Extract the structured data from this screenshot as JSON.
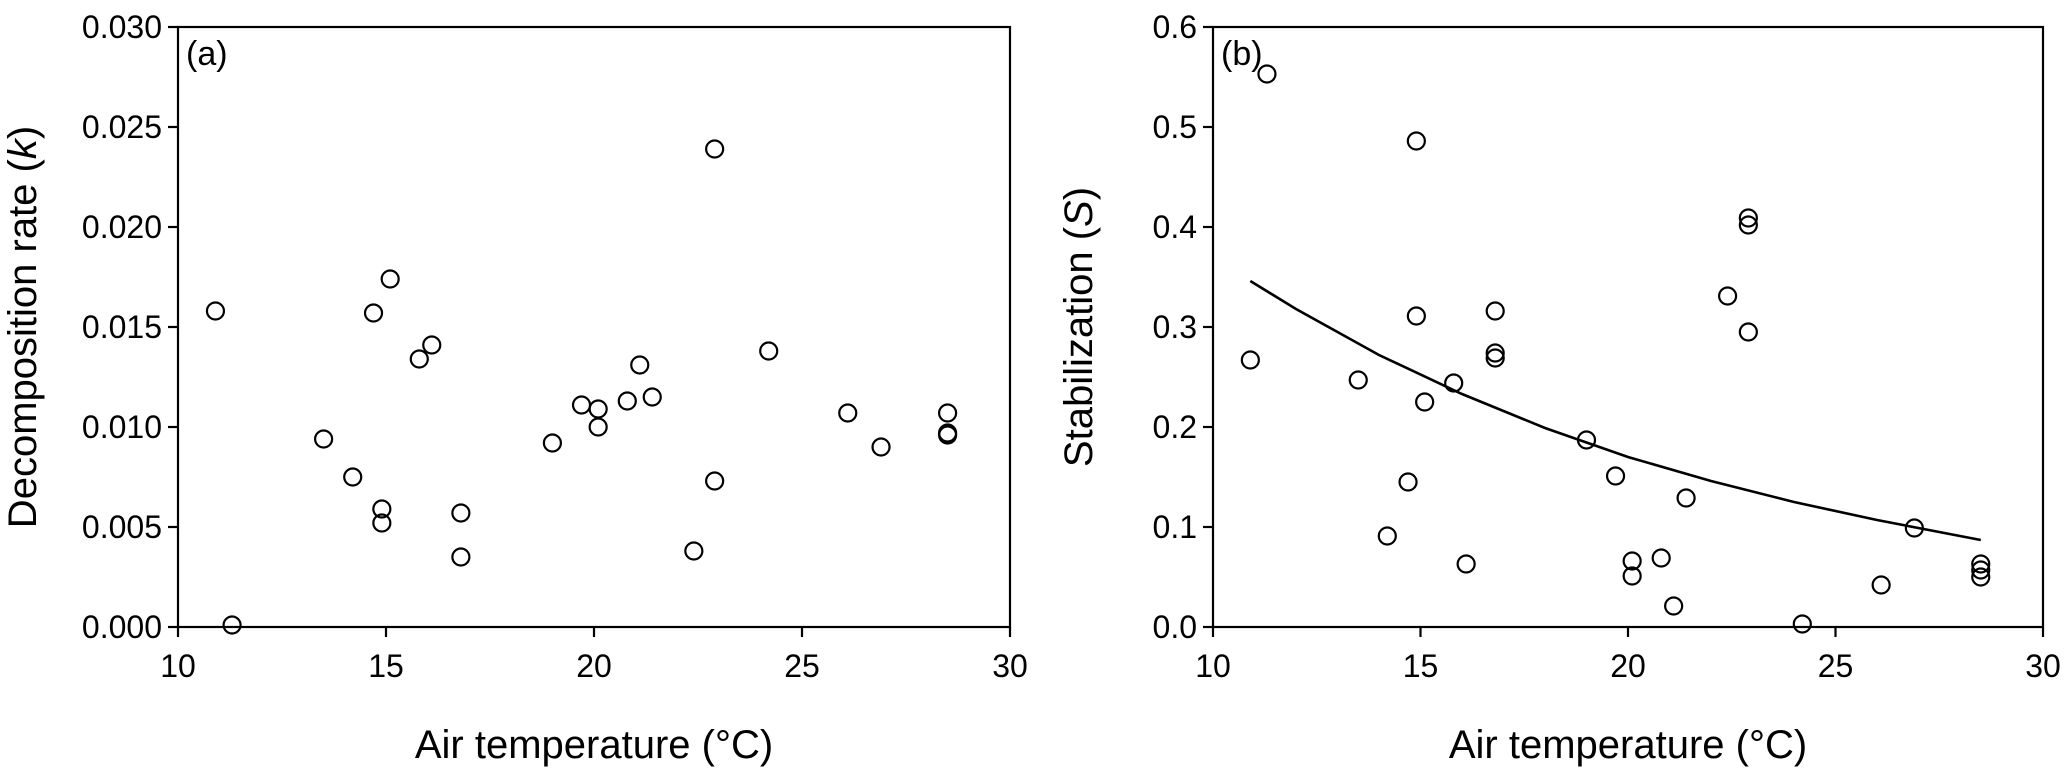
{
  "chart_data": [
    {
      "type": "scatter",
      "panel_label": "(a)",
      "xlabel": "Air temperature (°C)",
      "ylabel_prefix": "Decomposition rate (",
      "ylabel_var": "k",
      "ylabel_suffix": ")",
      "xlim": [
        10,
        30
      ],
      "ylim": [
        0,
        0.03
      ],
      "xticks": [
        10,
        15,
        20,
        25,
        30
      ],
      "yticks": [
        0,
        0.005,
        0.01,
        0.015,
        0.02,
        0.025,
        0.03
      ],
      "ytick_labels": [
        "0.000",
        "0.005",
        "0.010",
        "0.015",
        "0.020",
        "0.025",
        "0.030"
      ],
      "grid": false,
      "points": [
        {
          "x": 10.9,
          "y": 0.0158
        },
        {
          "x": 11.3,
          "y": 0.0001
        },
        {
          "x": 13.5,
          "y": 0.0094
        },
        {
          "x": 14.2,
          "y": 0.0075
        },
        {
          "x": 14.7,
          "y": 0.0157
        },
        {
          "x": 14.9,
          "y": 0.0059
        },
        {
          "x": 14.9,
          "y": 0.0052
        },
        {
          "x": 15.1,
          "y": 0.0174
        },
        {
          "x": 15.8,
          "y": 0.0134
        },
        {
          "x": 16.1,
          "y": 0.0141
        },
        {
          "x": 16.8,
          "y": 0.0057
        },
        {
          "x": 16.8,
          "y": 0.0035
        },
        {
          "x": 19.0,
          "y": 0.0092
        },
        {
          "x": 19.7,
          "y": 0.0111
        },
        {
          "x": 20.1,
          "y": 0.0109
        },
        {
          "x": 20.1,
          "y": 0.01
        },
        {
          "x": 20.8,
          "y": 0.0113
        },
        {
          "x": 21.1,
          "y": 0.0131
        },
        {
          "x": 21.4,
          "y": 0.0115
        },
        {
          "x": 22.4,
          "y": 0.0038
        },
        {
          "x": 22.9,
          "y": 0.0239
        },
        {
          "x": 22.9,
          "y": 0.0073
        },
        {
          "x": 24.2,
          "y": 0.0138
        },
        {
          "x": 26.1,
          "y": 0.0107
        },
        {
          "x": 26.9,
          "y": 0.009
        },
        {
          "x": 28.5,
          "y": 0.0107
        },
        {
          "x": 28.5,
          "y": 0.0097
        },
        {
          "x": 28.5,
          "y": 0.0096
        }
      ]
    },
    {
      "type": "scatter",
      "panel_label": "(b)",
      "xlabel": "Air temperature (°C)",
      "ylabel_prefix": "Stabilization (",
      "ylabel_var": "S",
      "ylabel_suffix": ")",
      "xlim": [
        10,
        30
      ],
      "ylim": [
        0,
        0.6
      ],
      "xticks": [
        10,
        15,
        20,
        25,
        30
      ],
      "yticks": [
        0,
        0.1,
        0.2,
        0.3,
        0.4,
        0.5,
        0.6
      ],
      "ytick_labels": [
        "0.0",
        "0.1",
        "0.2",
        "0.3",
        "0.4",
        "0.5",
        "0.6"
      ],
      "grid": false,
      "points": [
        {
          "x": 10.9,
          "y": 0.267
        },
        {
          "x": 11.3,
          "y": 0.553
        },
        {
          "x": 13.5,
          "y": 0.247
        },
        {
          "x": 14.2,
          "y": 0.091
        },
        {
          "x": 14.7,
          "y": 0.145
        },
        {
          "x": 14.9,
          "y": 0.486
        },
        {
          "x": 14.9,
          "y": 0.311
        },
        {
          "x": 15.1,
          "y": 0.225
        },
        {
          "x": 15.8,
          "y": 0.244
        },
        {
          "x": 16.1,
          "y": 0.063
        },
        {
          "x": 16.8,
          "y": 0.316
        },
        {
          "x": 16.8,
          "y": 0.274
        },
        {
          "x": 16.8,
          "y": 0.269
        },
        {
          "x": 19.0,
          "y": 0.187
        },
        {
          "x": 19.7,
          "y": 0.151
        },
        {
          "x": 20.1,
          "y": 0.066
        },
        {
          "x": 20.1,
          "y": 0.051
        },
        {
          "x": 20.8,
          "y": 0.069
        },
        {
          "x": 21.1,
          "y": 0.021
        },
        {
          "x": 21.4,
          "y": 0.129
        },
        {
          "x": 22.4,
          "y": 0.331
        },
        {
          "x": 22.9,
          "y": 0.409
        },
        {
          "x": 22.9,
          "y": 0.402
        },
        {
          "x": 22.9,
          "y": 0.295
        },
        {
          "x": 24.2,
          "y": 0.003
        },
        {
          "x": 26.1,
          "y": 0.042
        },
        {
          "x": 26.9,
          "y": 0.099
        },
        {
          "x": 28.5,
          "y": 0.063
        },
        {
          "x": 28.5,
          "y": 0.057
        },
        {
          "x": 28.5,
          "y": 0.05
        }
      ],
      "fit_line": [
        {
          "x": 10.9,
          "y": 0.346
        },
        {
          "x": 12,
          "y": 0.318
        },
        {
          "x": 14,
          "y": 0.272
        },
        {
          "x": 16,
          "y": 0.233
        },
        {
          "x": 18,
          "y": 0.199
        },
        {
          "x": 20,
          "y": 0.17
        },
        {
          "x": 22,
          "y": 0.146
        },
        {
          "x": 24,
          "y": 0.125
        },
        {
          "x": 26,
          "y": 0.107
        },
        {
          "x": 28.5,
          "y": 0.087
        }
      ]
    }
  ]
}
